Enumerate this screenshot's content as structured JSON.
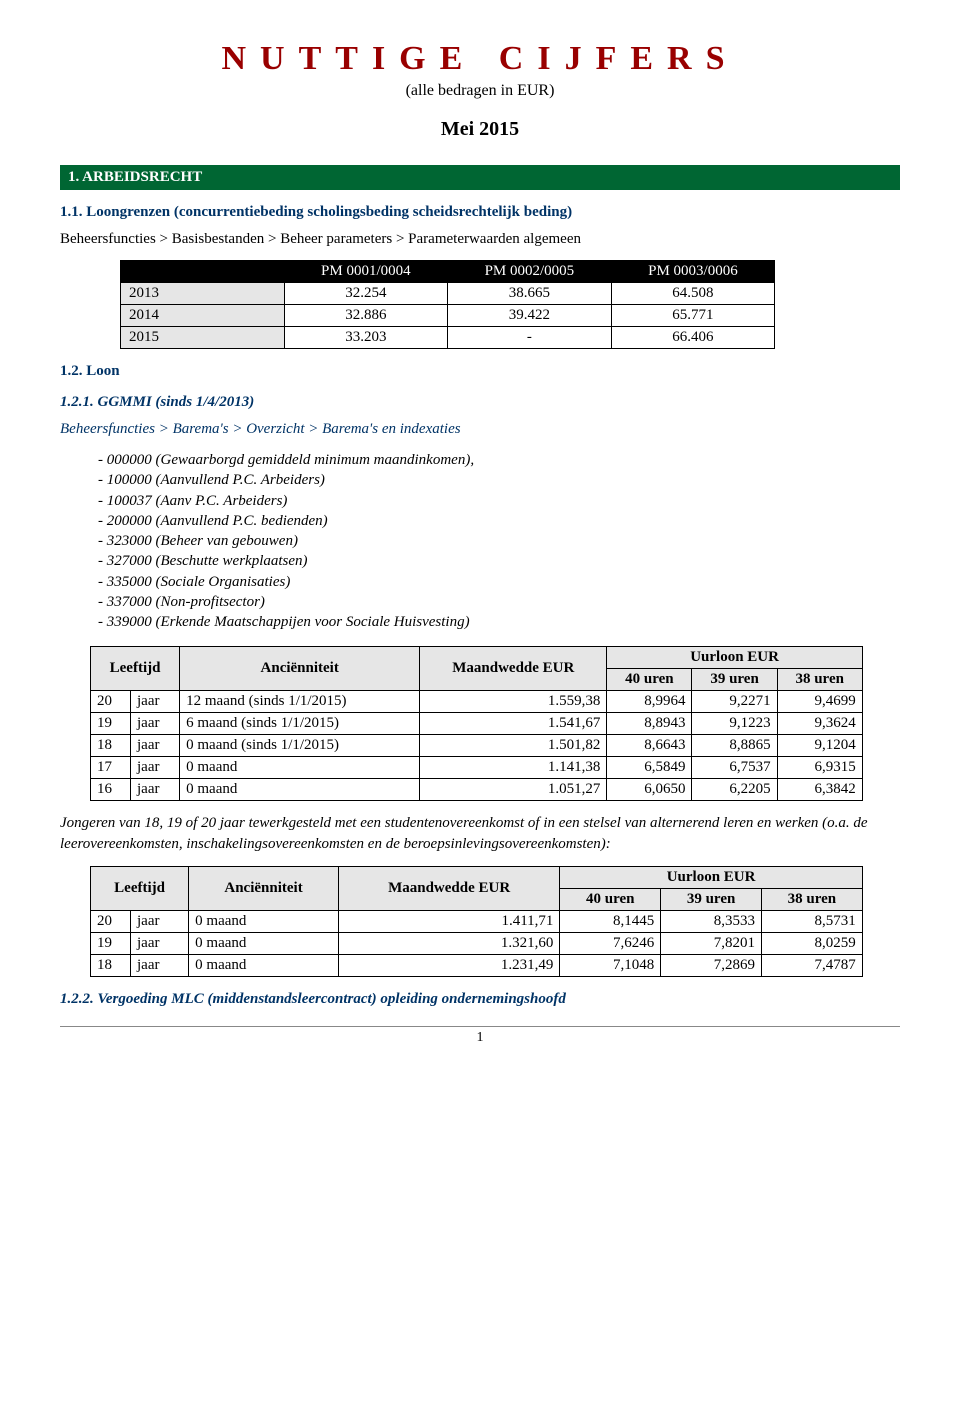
{
  "title": {
    "main": "NUTTIGE CIJFERS",
    "main_color": "#990000",
    "subtitle": "(alle bedragen in EUR)",
    "date": "Mei 2015"
  },
  "section1": {
    "header": "1. ARBEIDSRECHT",
    "header_bg": "#006633",
    "header_color": "#ffffff"
  },
  "s11": {
    "heading": "1.1. Loongrenzen (concurrentiebeding scholingsbeding scheidsrechtelijk beding)",
    "heading_color": "#003366",
    "breadcrumb": "Beheersfuncties > Basisbestanden > Beheer parameters > Parameterwaarden algemeen",
    "table": {
      "headers": [
        "",
        "PM 0001/0004",
        "PM 0002/0005",
        "PM 0003/0006"
      ],
      "rows": [
        [
          "2013",
          "32.254",
          "38.665",
          "64.508"
        ],
        [
          "2014",
          "32.886",
          "39.422",
          "65.771"
        ],
        [
          "2015",
          "33.203",
          "-",
          "66.406"
        ]
      ]
    }
  },
  "s12": {
    "heading": "1.2. Loon",
    "heading_color": "#003366"
  },
  "s121": {
    "heading": "1.2.1. GGMMI (sinds 1/4/2013)",
    "heading_color": "#003366",
    "breadcrumb": "Beheersfuncties > Barema's > Overzicht > Barema's en indexaties",
    "breadcrumb_color": "#003366",
    "items": [
      "000000 (Gewaarborgd gemiddeld minimum maandinkomen),",
      "100000 (Aanvullend P.C. Arbeiders)",
      "100037 (Aanv P.C. Arbeiders)",
      "200000 (Aanvullend P.C. bedienden)",
      "323000 (Beheer van gebouwen)",
      "327000 (Beschutte werkplaatsen)",
      "335000 (Sociale Organisaties)",
      "337000 (Non-profitsector)",
      "339000 (Erkende Maatschappijen voor Sociale Huisvesting)"
    ]
  },
  "wage_table1": {
    "columns": {
      "leeftijd": "Leeftijd",
      "anc": "Anciënniteit",
      "maand": "Maandwedde EUR",
      "uur": "Uurloon EUR",
      "u40": "40 uren",
      "u39": "39 uren",
      "u38": "38 uren"
    },
    "rows": [
      {
        "age_n": "20",
        "age_u": "jaar",
        "anc": "12 maand (sinds 1/1/2015)",
        "m": "1.559,38",
        "u40": "8,9964",
        "u39": "9,2271",
        "u38": "9,4699"
      },
      {
        "age_n": "19",
        "age_u": "jaar",
        "anc": "6 maand (sinds 1/1/2015)",
        "m": "1.541,67",
        "u40": "8,8943",
        "u39": "9,1223",
        "u38": "9,3624"
      },
      {
        "age_n": "18",
        "age_u": "jaar",
        "anc": "0 maand (sinds 1/1/2015)",
        "m": "1.501,82",
        "u40": "8,6643",
        "u39": "8,8865",
        "u38": "9,1204"
      },
      {
        "age_n": "17",
        "age_u": "jaar",
        "anc": "0 maand",
        "m": "1.141,38",
        "u40": "6,5849",
        "u39": "6,7537",
        "u38": "6,9315"
      },
      {
        "age_n": "16",
        "age_u": "jaar",
        "anc": "0 maand",
        "m": "1.051,27",
        "u40": "6,0650",
        "u39": "6,2205",
        "u38": "6,3842"
      }
    ]
  },
  "paragraph1": "Jongeren van 18, 19 of 20 jaar tewerkgesteld met een studentenovereenkomst of in een stelsel van alternerend leren en werken (o.a. de leerovereenkomsten, inschakelingsovereenkomsten en de beroepsinlevingsovereenkomsten):",
  "wage_table2": {
    "rows": [
      {
        "age_n": "20",
        "age_u": "jaar",
        "anc": "0 maand",
        "m": "1.411,71",
        "u40": "8,1445",
        "u39": "8,3533",
        "u38": "8,5731"
      },
      {
        "age_n": "19",
        "age_u": "jaar",
        "anc": "0 maand",
        "m": "1.321,60",
        "u40": "7,6246",
        "u39": "7,8201",
        "u38": "8,0259"
      },
      {
        "age_n": "18",
        "age_u": "jaar",
        "anc": "0 maand",
        "m": "1.231,49",
        "u40": "7,1048",
        "u39": "7,2869",
        "u38": "7,4787"
      }
    ]
  },
  "s122": {
    "heading": "1.2.2. Vergoeding MLC (middenstandsleercontract) opleiding ondernemingshoofd",
    "heading_color": "#003366"
  },
  "page_number": "1"
}
